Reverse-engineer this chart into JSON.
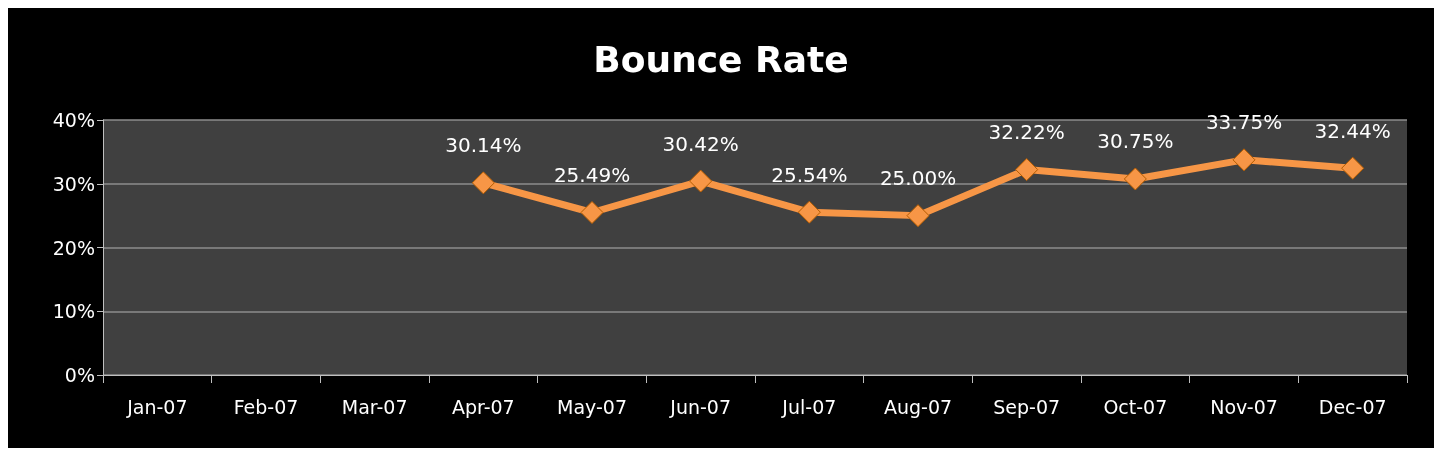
{
  "chart_data": {
    "type": "line",
    "title": "Bounce Rate",
    "categories": [
      "Jan-07",
      "Feb-07",
      "Mar-07",
      "Apr-07",
      "May-07",
      "Jun-07",
      "Jul-07",
      "Aug-07",
      "Sep-07",
      "Oct-07",
      "Nov-07",
      "Dec-07"
    ],
    "series": [
      {
        "color": "#f79646",
        "values": [
          null,
          null,
          null,
          30.14,
          25.49,
          30.42,
          25.54,
          25.0,
          32.22,
          30.75,
          33.75,
          32.44
        ],
        "value_labels": [
          null,
          null,
          null,
          "30.14%",
          "25.49%",
          "30.42%",
          "25.54%",
          "25.00%",
          "32.22%",
          "30.75%",
          "33.75%",
          "32.44%"
        ]
      }
    ],
    "ylim": [
      0,
      40
    ],
    "yticks": [
      {
        "value": 0,
        "label": "0%"
      },
      {
        "value": 10,
        "label": "10%"
      },
      {
        "value": 20,
        "label": "20%"
      },
      {
        "value": 30,
        "label": "30%"
      },
      {
        "value": 40,
        "label": "40%"
      }
    ],
    "grid": "y",
    "marker": "diamond",
    "line_style": "solid"
  }
}
